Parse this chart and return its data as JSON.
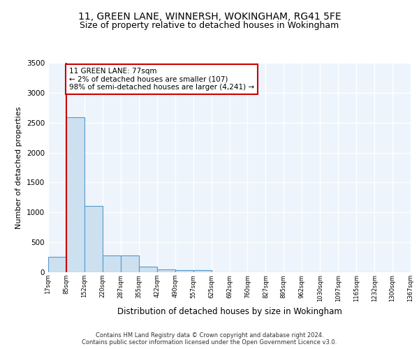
{
  "title": "11, GREEN LANE, WINNERSH, WOKINGHAM, RG41 5FE",
  "subtitle": "Size of property relative to detached houses in Wokingham",
  "xlabel": "Distribution of detached houses by size in Wokingham",
  "ylabel": "Number of detached properties",
  "bar_values": [
    255,
    2590,
    1110,
    275,
    275,
    95,
    50,
    35,
    30,
    0,
    0,
    0,
    0,
    0,
    0,
    0,
    0,
    0,
    0,
    0
  ],
  "bar_labels": [
    "17sqm",
    "85sqm",
    "152sqm",
    "220sqm",
    "287sqm",
    "355sqm",
    "422sqm",
    "490sqm",
    "557sqm",
    "625sqm",
    "692sqm",
    "760sqm",
    "827sqm",
    "895sqm",
    "962sqm",
    "1030sqm",
    "1097sqm",
    "1165sqm",
    "1232sqm",
    "1300sqm",
    "1367sqm"
  ],
  "bar_color": "#cce0f0",
  "bar_edge_color": "#5599cc",
  "property_line_x": 1.0,
  "property_line_color": "#cc0000",
  "annotation_text": "11 GREEN LANE: 77sqm\n← 2% of detached houses are smaller (107)\n98% of semi-detached houses are larger (4,241) →",
  "annotation_box_color": "#cc0000",
  "ylim": [
    0,
    3500
  ],
  "yticks": [
    0,
    500,
    1000,
    1500,
    2000,
    2500,
    3000,
    3500
  ],
  "background_color": "#eef4fb",
  "grid_color": "#ffffff",
  "footer_line1": "Contains HM Land Registry data © Crown copyright and database right 2024.",
  "footer_line2": "Contains public sector information licensed under the Open Government Licence v3.0.",
  "title_fontsize": 10,
  "subtitle_fontsize": 9
}
